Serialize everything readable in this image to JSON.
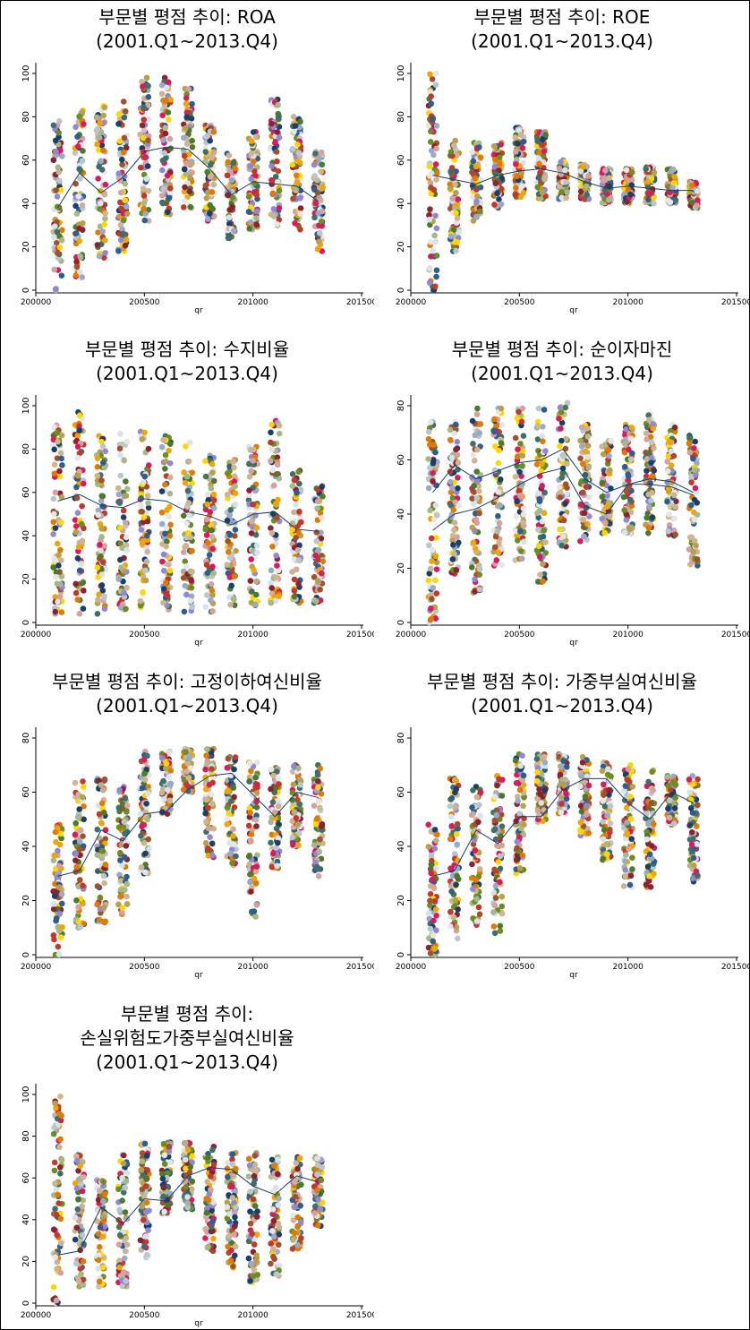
{
  "chart_data": [
    {
      "type": "scatter",
      "title": "부문별 평점 추이: ROA",
      "subtitle": "(2001.Q1~2013.Q4)",
      "xlabel": "qr",
      "ylabel": "",
      "xlim": [
        200000,
        201500
      ],
      "ylim": [
        0,
        100
      ],
      "x_ticks": [
        200000,
        200500,
        201000,
        201500
      ],
      "y_ticks": [
        0,
        20,
        40,
        60,
        80,
        100
      ],
      "grid": false,
      "series": [
        {
          "type": "line",
          "x": [
            200101,
            200201,
            200301,
            200401,
            200501,
            200601,
            200701,
            200801,
            200901,
            201001,
            201101,
            201201,
            201301
          ],
          "values": [
            38,
            54,
            45,
            52,
            64,
            66,
            65,
            56,
            44,
            50,
            49,
            48,
            41
          ]
        }
      ],
      "scatter_spread": [
        [
          0,
          78
        ],
        [
          6,
          83
        ],
        [
          15,
          85
        ],
        [
          18,
          87
        ],
        [
          32,
          98
        ],
        [
          35,
          98
        ],
        [
          38,
          93
        ],
        [
          32,
          76
        ],
        [
          24,
          63
        ],
        [
          28,
          73
        ],
        [
          30,
          88
        ],
        [
          28,
          80
        ],
        [
          18,
          64
        ]
      ]
    },
    {
      "type": "scatter",
      "title": "부문별 평점 추이: ROE",
      "subtitle": "(2001.Q1~2013.Q4)",
      "xlabel": "qr",
      "ylabel": "",
      "xlim": [
        200000,
        201500
      ],
      "ylim": [
        0,
        100
      ],
      "x_ticks": [
        200000,
        200500,
        201000,
        201500
      ],
      "y_ticks": [
        0,
        20,
        40,
        60,
        80,
        100
      ],
      "grid": false,
      "series": [
        {
          "type": "line",
          "x": [
            200101,
            200201,
            200301,
            200401,
            200501,
            200601,
            200701,
            200801,
            200901,
            201001,
            201101,
            201201,
            201301
          ],
          "values": [
            53,
            51,
            49,
            53,
            55,
            56,
            54,
            50,
            47,
            48,
            47,
            46,
            46
          ]
        }
      ],
      "scatter_spread": [
        [
          0,
          100
        ],
        [
          18,
          69
        ],
        [
          32,
          68
        ],
        [
          38,
          68
        ],
        [
          43,
          75
        ],
        [
          42,
          73
        ],
        [
          42,
          60
        ],
        [
          42,
          58
        ],
        [
          40,
          56
        ],
        [
          40,
          56
        ],
        [
          40,
          57
        ],
        [
          40,
          56
        ],
        [
          38,
          50
        ]
      ]
    },
    {
      "type": "scatter",
      "title": "부문별 평점 추이: 수지비율",
      "subtitle": "(2001.Q1~2013.Q4)",
      "xlabel": "qr",
      "ylabel": "",
      "xlim": [
        200000,
        201500
      ],
      "ylim": [
        0,
        100
      ],
      "x_ticks": [
        200000,
        200500,
        201000,
        201500
      ],
      "y_ticks": [
        0,
        20,
        40,
        60,
        80,
        100
      ],
      "grid": false,
      "series": [
        {
          "type": "line",
          "x": [
            200101,
            200201,
            200301,
            200401,
            200501,
            200601,
            200701,
            200801,
            200901,
            201001,
            201101,
            201201,
            201301
          ],
          "values": [
            56,
            59,
            54,
            53,
            57,
            56,
            51,
            49,
            45,
            50,
            51,
            43,
            42
          ]
        }
      ],
      "scatter_spread": [
        [
          4,
          91
        ],
        [
          4,
          97
        ],
        [
          4,
          86
        ],
        [
          6,
          87
        ],
        [
          7,
          88
        ],
        [
          6,
          86
        ],
        [
          5,
          83
        ],
        [
          5,
          77
        ],
        [
          8,
          75
        ],
        [
          8,
          81
        ],
        [
          9,
          93
        ],
        [
          9,
          70
        ],
        [
          9,
          63
        ]
      ]
    },
    {
      "type": "scatter",
      "title": "부문별 평점 추이: 순이자마진",
      "subtitle": "(2001.Q1~2013.Q4)",
      "xlabel": "qr",
      "ylabel": "",
      "xlim": [
        200000,
        201500
      ],
      "ylim": [
        0,
        80
      ],
      "x_ticks": [
        200000,
        200500,
        201000,
        201500
      ],
      "y_ticks": [
        0,
        20,
        40,
        60,
        80
      ],
      "grid": false,
      "series": [
        {
          "type": "line",
          "x": [
            200101,
            200201,
            200301,
            200401,
            200501,
            200601,
            200701,
            200801,
            200901,
            201001,
            201101,
            201201,
            201301
          ],
          "values": [
            48,
            58,
            53,
            56,
            59,
            60,
            64,
            53,
            48,
            51,
            53,
            52,
            48
          ]
        },
        {
          "type": "line",
          "x": [
            200101,
            200201,
            200301,
            200401,
            200501,
            200601,
            200701,
            200801,
            200901,
            201001,
            201101,
            201201,
            201301
          ],
          "values": [
            34,
            40,
            42,
            46,
            51,
            55,
            57,
            43,
            40,
            51,
            51,
            50,
            47
          ]
        }
      ],
      "scatter_spread": [
        [
          0,
          74
        ],
        [
          18,
          74
        ],
        [
          11,
          79
        ],
        [
          21,
          79
        ],
        [
          23,
          79
        ],
        [
          15,
          79
        ],
        [
          28,
          81
        ],
        [
          30,
          73
        ],
        [
          33,
          67
        ],
        [
          33,
          73
        ],
        [
          33,
          77
        ],
        [
          32,
          73
        ],
        [
          21,
          69
        ]
      ]
    },
    {
      "type": "scatter",
      "title": "부문별 평점 추이: 고정이하여신비율",
      "subtitle": "(2001.Q1~2013.Q4)",
      "xlabel": "qr",
      "ylabel": "",
      "xlim": [
        200000,
        201500
      ],
      "ylim": [
        0,
        80
      ],
      "x_ticks": [
        200000,
        200500,
        201000,
        201500
      ],
      "y_ticks": [
        0,
        20,
        40,
        60,
        80
      ],
      "grid": false,
      "series": [
        {
          "type": "line",
          "x": [
            200101,
            200201,
            200301,
            200401,
            200501,
            200601,
            200701,
            200801,
            200901,
            201001,
            201101,
            201201,
            201301
          ],
          "values": [
            29,
            31,
            46,
            42,
            52,
            53,
            61,
            66,
            67,
            59,
            51,
            60,
            58
          ]
        }
      ],
      "scatter_spread": [
        [
          0,
          48
        ],
        [
          10,
          64
        ],
        [
          12,
          65
        ],
        [
          15,
          62
        ],
        [
          30,
          75
        ],
        [
          52,
          75
        ],
        [
          60,
          76
        ],
        [
          36,
          76
        ],
        [
          33,
          73
        ],
        [
          14,
          71
        ],
        [
          32,
          69
        ],
        [
          40,
          70
        ],
        [
          29,
          70
        ]
      ]
    },
    {
      "type": "scatter",
      "title": "부문별 평점 추이: 가중부실여신비율",
      "subtitle": "(2001.Q1~2013.Q4)",
      "xlabel": "qr",
      "ylabel": "",
      "xlim": [
        200000,
        201500
      ],
      "ylim": [
        0,
        80
      ],
      "x_ticks": [
        200000,
        200500,
        201000,
        201500
      ],
      "y_ticks": [
        0,
        20,
        40,
        60,
        80
      ],
      "grid": false,
      "series": [
        {
          "type": "line",
          "x": [
            200101,
            200201,
            200301,
            200401,
            200501,
            200601,
            200701,
            200801,
            200901,
            201001,
            201101,
            201201,
            201301
          ],
          "values": [
            29,
            31,
            46,
            41,
            51,
            51,
            61,
            65,
            65,
            56,
            50,
            60,
            56
          ]
        }
      ],
      "scatter_spread": [
        [
          0,
          48
        ],
        [
          6,
          65
        ],
        [
          11,
          62
        ],
        [
          8,
          66
        ],
        [
          30,
          74
        ],
        [
          49,
          74
        ],
        [
          52,
          74
        ],
        [
          44,
          73
        ],
        [
          35,
          71
        ],
        [
          25,
          70
        ],
        [
          25,
          68
        ],
        [
          48,
          66
        ],
        [
          27,
          66
        ]
      ]
    },
    {
      "type": "scatter",
      "title": "부문별 평점 추이:",
      "subtitle": "손실위험도가중부실여신비율",
      "subtitle2": "(2001.Q1~2013.Q4)",
      "xlabel": "qr",
      "ylabel": "",
      "xlim": [
        200000,
        201500
      ],
      "ylim": [
        0,
        100
      ],
      "x_ticks": [
        200000,
        200500,
        201000,
        201500
      ],
      "y_ticks": [
        0,
        20,
        40,
        60,
        80,
        100
      ],
      "grid": false,
      "series": [
        {
          "type": "line",
          "x": [
            200101,
            200201,
            200301,
            200401,
            200501,
            200601,
            200701,
            200801,
            200901,
            201001,
            201101,
            201201,
            201301
          ],
          "values": [
            23,
            25,
            46,
            38,
            50,
            49,
            61,
            65,
            64,
            56,
            52,
            61,
            58
          ]
        }
      ],
      "scatter_spread": [
        [
          0,
          99
        ],
        [
          8,
          71
        ],
        [
          8,
          59
        ],
        [
          8,
          71
        ],
        [
          22,
          77
        ],
        [
          43,
          77
        ],
        [
          45,
          77
        ],
        [
          25,
          75
        ],
        [
          17,
          72
        ],
        [
          10,
          72
        ],
        [
          13,
          70
        ],
        [
          26,
          70
        ],
        [
          37,
          70
        ]
      ]
    }
  ],
  "palette": [
    "#1a3f6b",
    "#2e5e8e",
    "#8b2232",
    "#c0392b",
    "#e07b00",
    "#f0a500",
    "#ffd700",
    "#4a7a2b",
    "#6b8e23",
    "#3f6f6a",
    "#9aa9c9",
    "#8e88d6",
    "#c9b49a",
    "#d2b48c",
    "#b8c7cf",
    "#a6b88a",
    "#d4a0a0",
    "#b8a04a",
    "#e6e6e6",
    "#d6e3ec",
    "#a0522d",
    "#d81b60"
  ],
  "line_color": "#1a3f6b"
}
